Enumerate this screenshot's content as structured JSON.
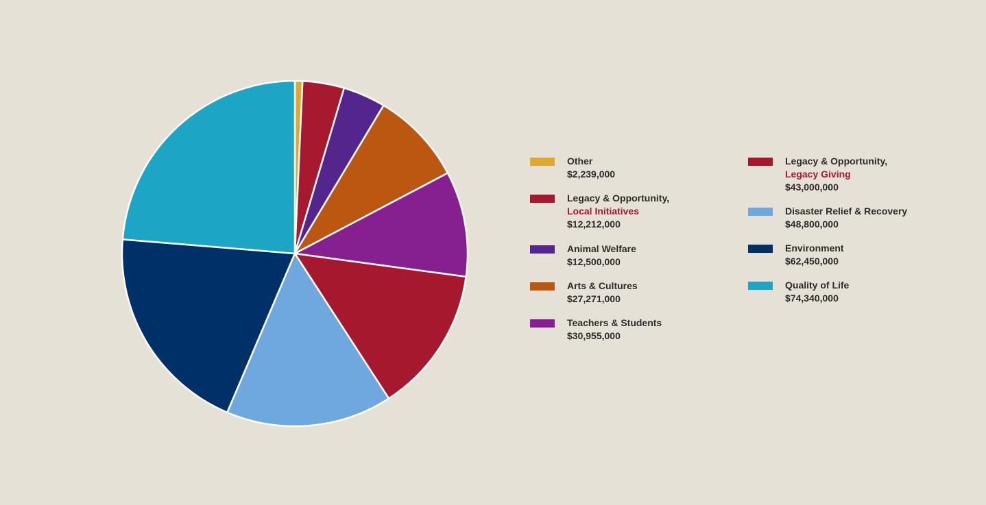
{
  "chart_data": {
    "type": "pie",
    "title": "",
    "start_angle_deg": 0,
    "direction": "clockwise",
    "slices": [
      {
        "key": "other",
        "label": "Other",
        "value": 2239000,
        "value_label": "$2,239,000",
        "color": "#e0a82e"
      },
      {
        "key": "legacy_local",
        "label": "Legacy & Opportunity,",
        "subtitle": "Local Initiatives",
        "value": 12212000,
        "value_label": "$12,212,000",
        "color": "#a6192e"
      },
      {
        "key": "animal",
        "label": "Animal Welfare",
        "value": 12500000,
        "value_label": "$12,500,000",
        "color": "#55258e"
      },
      {
        "key": "arts",
        "label": "Arts & Cultures",
        "value": 27271000,
        "value_label": "$27,271,000",
        "color": "#bb5711"
      },
      {
        "key": "teachers",
        "label": "Teachers & Students",
        "value": 30955000,
        "value_label": "$30,955,000",
        "color": "#862090"
      },
      {
        "key": "legacy_giving",
        "label": "Legacy & Opportunity,",
        "subtitle": "Legacy Giving",
        "value": 43000000,
        "value_label": "$43,000,000",
        "color": "#a6182e"
      },
      {
        "key": "disaster",
        "label": "Disaster Relief & Recovery",
        "value": 48800000,
        "value_label": "$48,800,000",
        "color": "#6ea8de"
      },
      {
        "key": "environment",
        "label": "Environment",
        "value": 62450000,
        "value_label": "$62,450,000",
        "color": "#003068"
      },
      {
        "key": "quality",
        "label": "Quality of Life",
        "value": 74340000,
        "value_label": "$74,340,000",
        "color": "#1ca5c5"
      }
    ],
    "legend": {
      "placement": "right",
      "columns": [
        [
          "other",
          "legacy_local",
          "animal",
          "arts",
          "teachers"
        ],
        [
          "legacy_giving",
          "disaster",
          "environment",
          "quality"
        ]
      ]
    }
  }
}
